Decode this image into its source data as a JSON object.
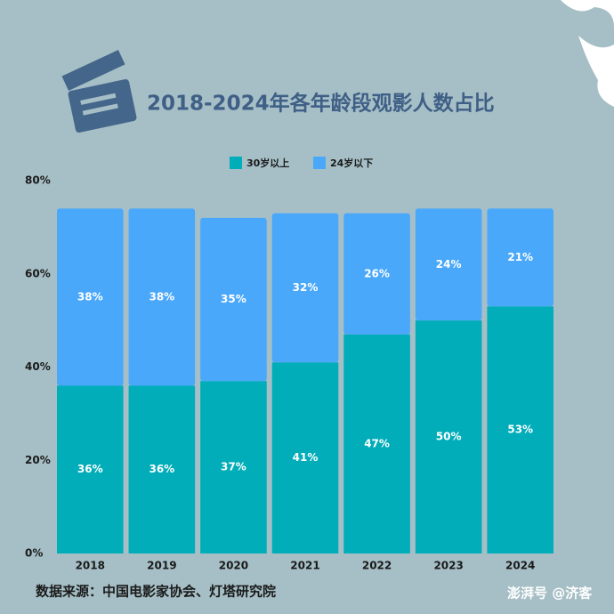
{
  "chart_data": {
    "type": "stacked_bar",
    "title": "2018-2024年各年龄段观影人数占比",
    "categories": [
      "2018",
      "2019",
      "2020",
      "2021",
      "2022",
      "2023",
      "2024"
    ],
    "series": [
      {
        "name": "30岁以上",
        "color": "#00adb9",
        "values": [
          36,
          36,
          37,
          41,
          47,
          50,
          53
        ],
        "value_labels": [
          "36%",
          "36%",
          "37%",
          "41%",
          "47%",
          "50%",
          "53%"
        ]
      },
      {
        "name": "24岁以下",
        "color": "#4aa8fa",
        "values": [
          38,
          38,
          35,
          32,
          26,
          24,
          21
        ],
        "value_labels": [
          "38%",
          "38%",
          "35%",
          "32%",
          "26%",
          "24%",
          "21%"
        ]
      }
    ],
    "ylim": [
      0,
      80
    ],
    "yticks": [
      {
        "value": 0,
        "label": "0%"
      },
      {
        "value": 20,
        "label": "20%"
      },
      {
        "value": 40,
        "label": "40%"
      },
      {
        "value": 60,
        "label": "60%"
      },
      {
        "value": 80,
        "label": "80%"
      }
    ],
    "legend": "top",
    "source": "数据来源：中国电影家协会、灯塔研究院",
    "watermark": "澎湃号 @济客"
  }
}
